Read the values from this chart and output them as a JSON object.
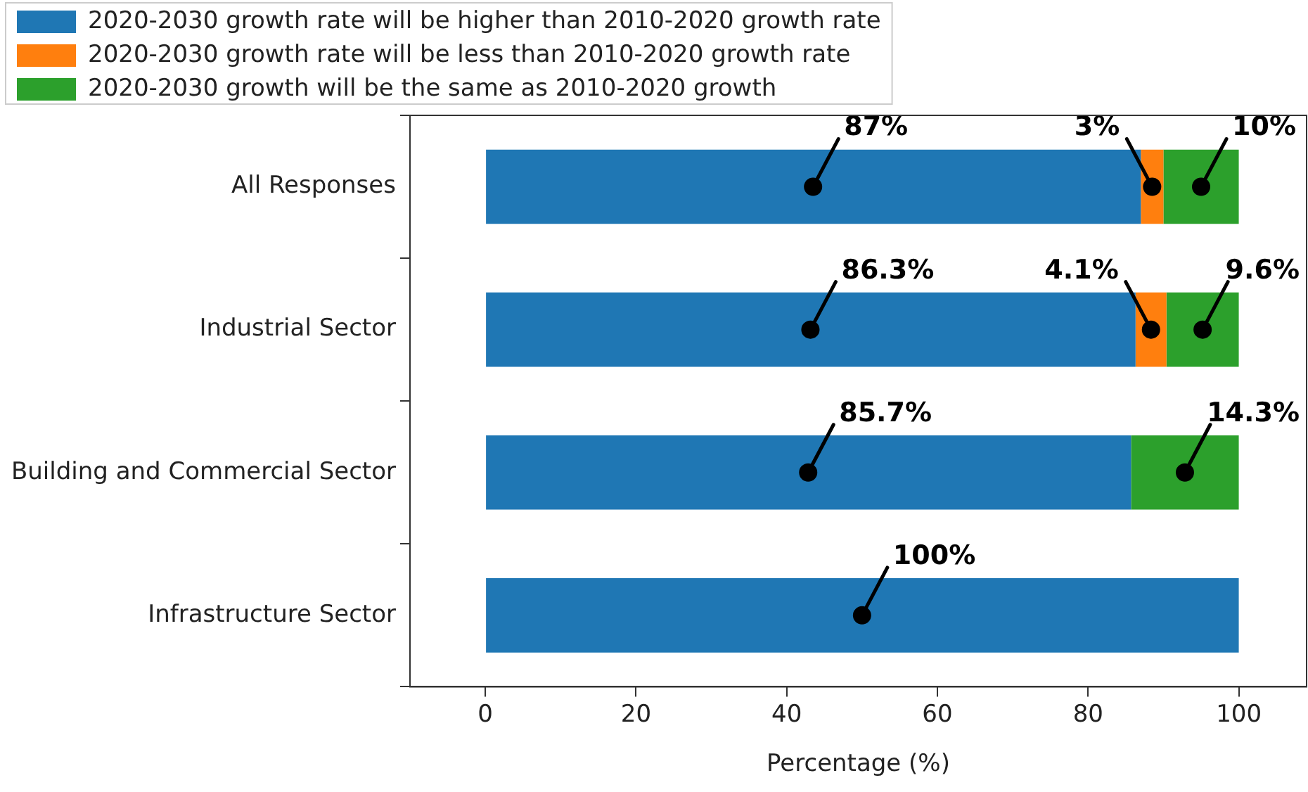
{
  "chart_data": {
    "type": "bar",
    "orientation": "horizontal",
    "stacked": true,
    "xlabel": "Percentage (%)",
    "categories": [
      "All Responses",
      "Industrial Sector",
      "Building and Commercial Sector",
      "Infrastructure Sector"
    ],
    "series": [
      {
        "name": "2020-2030 growth rate will be higher than 2010-2020 growth rate",
        "color": "#1f77b4",
        "values": [
          87,
          86.3,
          85.7,
          100
        ],
        "value_labels": [
          "87%",
          "86.3%",
          "85.7%",
          "100%"
        ]
      },
      {
        "name": "2020-2030 growth rate will be less than 2010-2020 growth rate",
        "color": "#ff7f0e",
        "values": [
          3,
          4.1,
          0,
          0
        ],
        "value_labels": [
          "3%",
          "4.1%",
          null,
          null
        ]
      },
      {
        "name": "2020-2030 growth will be the same as 2010-2020 growth",
        "color": "#2ca02c",
        "values": [
          10,
          9.6,
          14.3,
          0
        ],
        "value_labels": [
          "10%",
          "9.6%",
          "14.3%",
          null
        ]
      }
    ],
    "xlim": [
      -10,
      109
    ],
    "xticks": [
      0,
      20,
      40,
      60,
      80,
      100
    ],
    "grid": false,
    "legend": "top"
  }
}
